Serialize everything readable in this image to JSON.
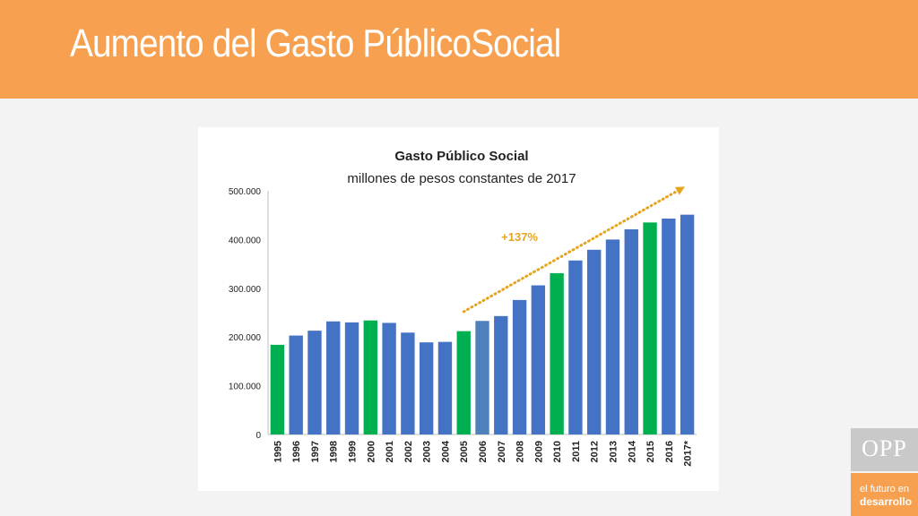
{
  "slide": {
    "title": "Aumento del Gasto PúblicoSocial"
  },
  "branding": {
    "logo_text": "OPP",
    "tagline_line1": "el futuro en",
    "tagline_line2": "desarrollo"
  },
  "colors": {
    "header": "#f7a04f",
    "bar_default": "#4472c4",
    "bar_highlight": "#00b050",
    "bar_light": "#4f81bd",
    "arrow": "#e5a520"
  },
  "chart_data": {
    "type": "bar",
    "title": "Gasto Público Social",
    "subtitle": "millones de pesos constantes de 2017",
    "categories": [
      "1995",
      "1996",
      "1997",
      "1998",
      "1999",
      "2000",
      "2001",
      "2002",
      "2003",
      "2004",
      "2005",
      "2006",
      "2007",
      "2008",
      "2009",
      "2010",
      "2011",
      "2012",
      "2013",
      "2014",
      "2015",
      "2016",
      "2017*"
    ],
    "values": [
      184000,
      203000,
      213000,
      232000,
      230000,
      234000,
      229000,
      209000,
      189000,
      190000,
      212000,
      233000,
      243000,
      276000,
      306000,
      331000,
      357000,
      379000,
      400000,
      421000,
      435000,
      443000,
      451000
    ],
    "bar_colors": [
      "#00b050",
      "#4472c4",
      "#4472c4",
      "#4472c4",
      "#4472c4",
      "#00b050",
      "#4472c4",
      "#4472c4",
      "#4472c4",
      "#4472c4",
      "#00b050",
      "#4f81bd",
      "#4472c4",
      "#4472c4",
      "#4472c4",
      "#00b050",
      "#4472c4",
      "#4472c4",
      "#4472c4",
      "#4472c4",
      "#00b050",
      "#4472c4",
      "#4472c4"
    ],
    "ylim": [
      0,
      500000
    ],
    "yticks": [
      0,
      100000,
      200000,
      300000,
      400000,
      500000
    ],
    "ytick_labels": [
      "0",
      "100.000",
      "200.000",
      "300.000",
      "400.000",
      "500.000"
    ],
    "grid": false,
    "annotation": {
      "text": "+137%",
      "arrow_from": {
        "category": "2005",
        "value": 252000
      },
      "arrow_to": {
        "category": "2017*",
        "value": 505000
      },
      "label_at": {
        "category": "2008",
        "value": 397000
      }
    }
  }
}
